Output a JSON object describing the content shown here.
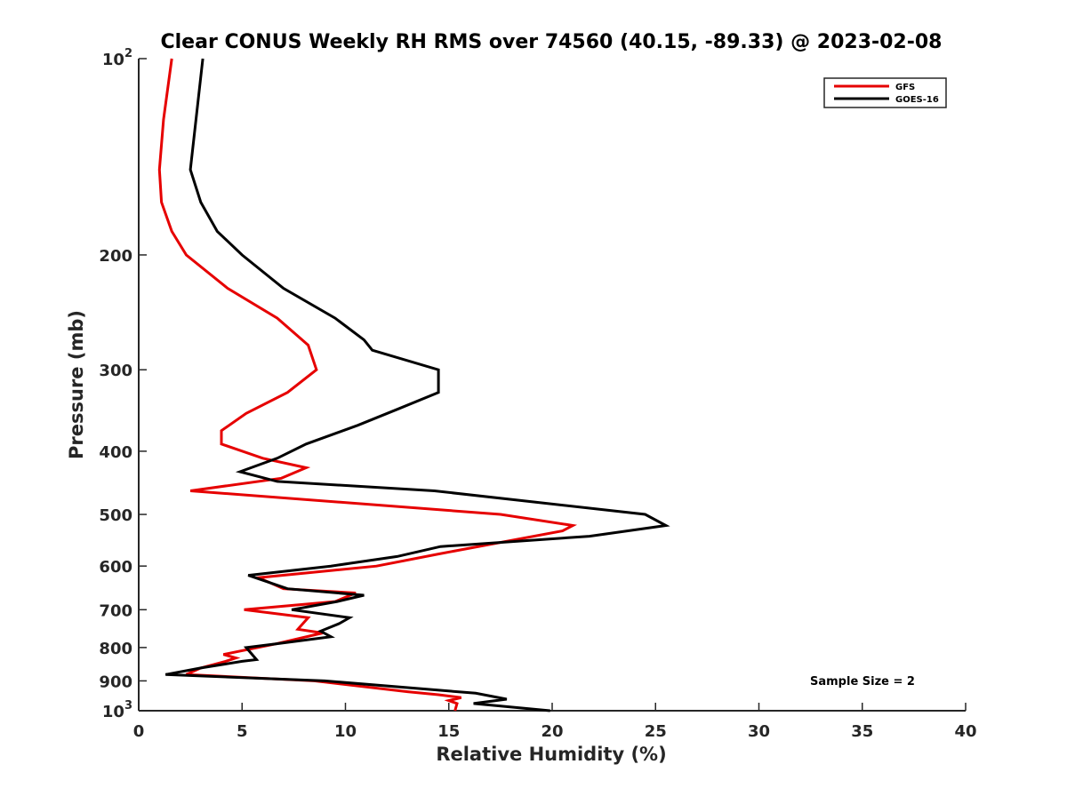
{
  "chart_data": {
    "type": "line",
    "title": "Clear CONUS Weekly RH RMS over 74560 (40.15, -89.33) @ 2023-02-08",
    "xlabel": "Relative Humidity (%)",
    "ylabel": "Pressure (mb)",
    "xlim": [
      0,
      40
    ],
    "ylim": [
      100,
      1000
    ],
    "yscale": "log",
    "yreversed": true,
    "grid": false,
    "legend_position": "top-right",
    "x_ticks": [
      0,
      5,
      10,
      15,
      20,
      25,
      30,
      35,
      40
    ],
    "y_ticks": [
      {
        "value": 100,
        "label": "10",
        "sup": "2"
      },
      {
        "value": 200,
        "label": "200",
        "sup": ""
      },
      {
        "value": 300,
        "label": "300",
        "sup": ""
      },
      {
        "value": 400,
        "label": "400",
        "sup": ""
      },
      {
        "value": 500,
        "label": "500",
        "sup": ""
      },
      {
        "value": 600,
        "label": "600",
        "sup": ""
      },
      {
        "value": 700,
        "label": "700",
        "sup": ""
      },
      {
        "value": 800,
        "label": "800",
        "sup": ""
      },
      {
        "value": 900,
        "label": "900",
        "sup": ""
      },
      {
        "value": 1000,
        "label": "10",
        "sup": "3"
      }
    ],
    "annotation": "Sample Size = 2",
    "series": [
      {
        "name": "GFS",
        "color": "#e60000",
        "points": [
          [
            1.6,
            100
          ],
          [
            1.2,
            124
          ],
          [
            1.0,
            148
          ],
          [
            1.1,
            166
          ],
          [
            1.6,
            184
          ],
          [
            2.3,
            200
          ],
          [
            4.3,
            225
          ],
          [
            6.7,
            250
          ],
          [
            8.2,
            275
          ],
          [
            8.6,
            300
          ],
          [
            7.2,
            325
          ],
          [
            5.2,
            350
          ],
          [
            4.0,
            372
          ],
          [
            4.0,
            390
          ],
          [
            6.0,
            410
          ],
          [
            8.1,
            424
          ],
          [
            6.9,
            440
          ],
          [
            2.5,
            460
          ],
          [
            17.5,
            500
          ],
          [
            21.0,
            520
          ],
          [
            20.5,
            530
          ],
          [
            14.5,
            575
          ],
          [
            11.5,
            600
          ],
          [
            5.8,
            625
          ],
          [
            7.0,
            650
          ],
          [
            10.5,
            660
          ],
          [
            9.5,
            680
          ],
          [
            5.1,
            700
          ],
          [
            8.2,
            720
          ],
          [
            7.7,
            750
          ],
          [
            8.9,
            760
          ],
          [
            6.6,
            790
          ],
          [
            4.1,
            820
          ],
          [
            4.7,
            830
          ],
          [
            4.2,
            840
          ],
          [
            3.0,
            860
          ],
          [
            2.3,
            880
          ],
          [
            8.5,
            900
          ],
          [
            13.0,
            935
          ],
          [
            14.5,
            945
          ],
          [
            15.6,
            955
          ],
          [
            15.0,
            965
          ],
          [
            15.4,
            975
          ],
          [
            15.3,
            1000
          ]
        ]
      },
      {
        "name": "GOES-16",
        "color": "#000000",
        "points": [
          [
            3.1,
            100
          ],
          [
            2.5,
            148
          ],
          [
            3.0,
            166
          ],
          [
            3.8,
            184
          ],
          [
            5.0,
            200
          ],
          [
            7.0,
            225
          ],
          [
            9.5,
            250
          ],
          [
            10.9,
            270
          ],
          [
            11.3,
            280
          ],
          [
            14.5,
            300
          ],
          [
            14.5,
            325
          ],
          [
            12.5,
            345
          ],
          [
            10.6,
            365
          ],
          [
            8.1,
            390
          ],
          [
            6.7,
            410
          ],
          [
            4.9,
            430
          ],
          [
            6.7,
            445
          ],
          [
            14.3,
            460
          ],
          [
            24.5,
            500
          ],
          [
            25.5,
            520
          ],
          [
            21.8,
            540
          ],
          [
            14.6,
            560
          ],
          [
            12.5,
            580
          ],
          [
            9.3,
            600
          ],
          [
            5.3,
            620
          ],
          [
            7.2,
            650
          ],
          [
            10.9,
            665
          ],
          [
            9.6,
            680
          ],
          [
            7.4,
            700
          ],
          [
            10.2,
            720
          ],
          [
            9.7,
            735
          ],
          [
            8.8,
            755
          ],
          [
            9.3,
            770
          ],
          [
            6.6,
            790
          ],
          [
            5.2,
            800
          ],
          [
            5.7,
            835
          ],
          [
            5.0,
            840
          ],
          [
            3.0,
            860
          ],
          [
            1.3,
            880
          ],
          [
            9.0,
            900
          ],
          [
            16.3,
            940
          ],
          [
            17.8,
            960
          ],
          [
            16.2,
            975
          ],
          [
            19.9,
            1000
          ]
        ]
      }
    ]
  }
}
